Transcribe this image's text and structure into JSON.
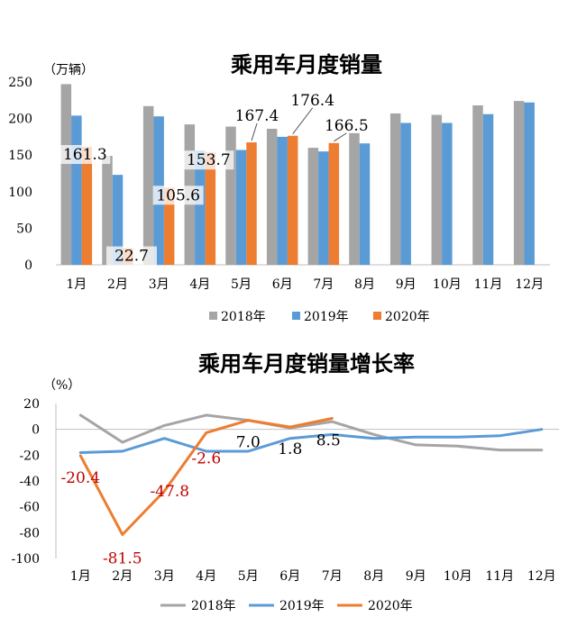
{
  "chart_data": [
    {
      "type": "bar",
      "title": "乘用车月度销量",
      "ylabel": "（万辆）",
      "categories": [
        "1月",
        "2月",
        "3月",
        "4月",
        "5月",
        "6月",
        "7月",
        "8月",
        "9月",
        "10月",
        "11月",
        "12月"
      ],
      "ylim": [
        0,
        250
      ],
      "yticks": [
        0,
        50,
        100,
        150,
        200,
        250
      ],
      "grid": false,
      "legend_position": "bottom",
      "series": [
        {
          "name": "2018年",
          "color": "#a5a5a5",
          "values": [
            247,
            149,
            217,
            192,
            189,
            186,
            160,
            180,
            207,
            205,
            218,
            224
          ]
        },
        {
          "name": "2019年",
          "color": "#5b9bd5",
          "values": [
            204,
            123,
            203,
            156,
            157,
            175,
            155,
            166,
            194,
            194,
            206,
            222
          ]
        },
        {
          "name": "2020年",
          "color": "#ed7d31",
          "values": [
            161.3,
            22.7,
            105.6,
            153.7,
            167.4,
            176.4,
            166.5,
            null,
            null,
            null,
            null,
            null
          ]
        }
      ],
      "data_labels": [
        {
          "series": 2,
          "index": 0,
          "text": "161.3"
        },
        {
          "series": 2,
          "index": 1,
          "text": "22.7"
        },
        {
          "series": 2,
          "index": 2,
          "text": "105.6"
        },
        {
          "series": 2,
          "index": 3,
          "text": "153.7"
        },
        {
          "series": 2,
          "index": 4,
          "text": "167.4"
        },
        {
          "series": 2,
          "index": 5,
          "text": "176.4"
        },
        {
          "series": 2,
          "index": 6,
          "text": "166.5"
        }
      ]
    },
    {
      "type": "line",
      "title": "乘用车月度销量增长率",
      "ylabel": "（%）",
      "categories": [
        "1月",
        "2月",
        "3月",
        "4月",
        "5月",
        "6月",
        "7月",
        "8月",
        "9月",
        "10月",
        "11月",
        "12月"
      ],
      "ylim": [
        -100,
        20
      ],
      "yticks": [
        20,
        0,
        -20,
        -40,
        -60,
        -80,
        -100
      ],
      "grid": false,
      "legend_position": "bottom",
      "series": [
        {
          "name": "2018年",
          "color": "#a5a5a5",
          "values": [
            11,
            -10,
            3,
            11,
            7,
            1,
            6,
            -4,
            -12,
            -13,
            -16,
            -16
          ]
        },
        {
          "name": "2019年",
          "color": "#5b9bd5",
          "values": [
            -18,
            -17,
            -7,
            -17,
            -17,
            -7,
            -4,
            -7,
            -6,
            -6,
            -5,
            0
          ]
        },
        {
          "name": "2020年",
          "color": "#ed7d31",
          "values": [
            -20.4,
            -81.5,
            -47.8,
            -2.6,
            7.0,
            1.8,
            8.5,
            null,
            null,
            null,
            null,
            null
          ]
        }
      ],
      "data_labels": [
        {
          "series": 2,
          "index": 0,
          "text": "-20.4",
          "color": "#c00000"
        },
        {
          "series": 2,
          "index": 1,
          "text": "-81.5",
          "color": "#c00000"
        },
        {
          "series": 2,
          "index": 2,
          "text": "-47.8",
          "color": "#c00000"
        },
        {
          "series": 2,
          "index": 3,
          "text": "-2.6",
          "color": "#c00000"
        },
        {
          "series": 2,
          "index": 4,
          "text": "7.0",
          "color": "#000000"
        },
        {
          "series": 2,
          "index": 5,
          "text": "1.8",
          "color": "#000000"
        },
        {
          "series": 2,
          "index": 6,
          "text": "8.5",
          "color": "#000000"
        }
      ]
    }
  ]
}
